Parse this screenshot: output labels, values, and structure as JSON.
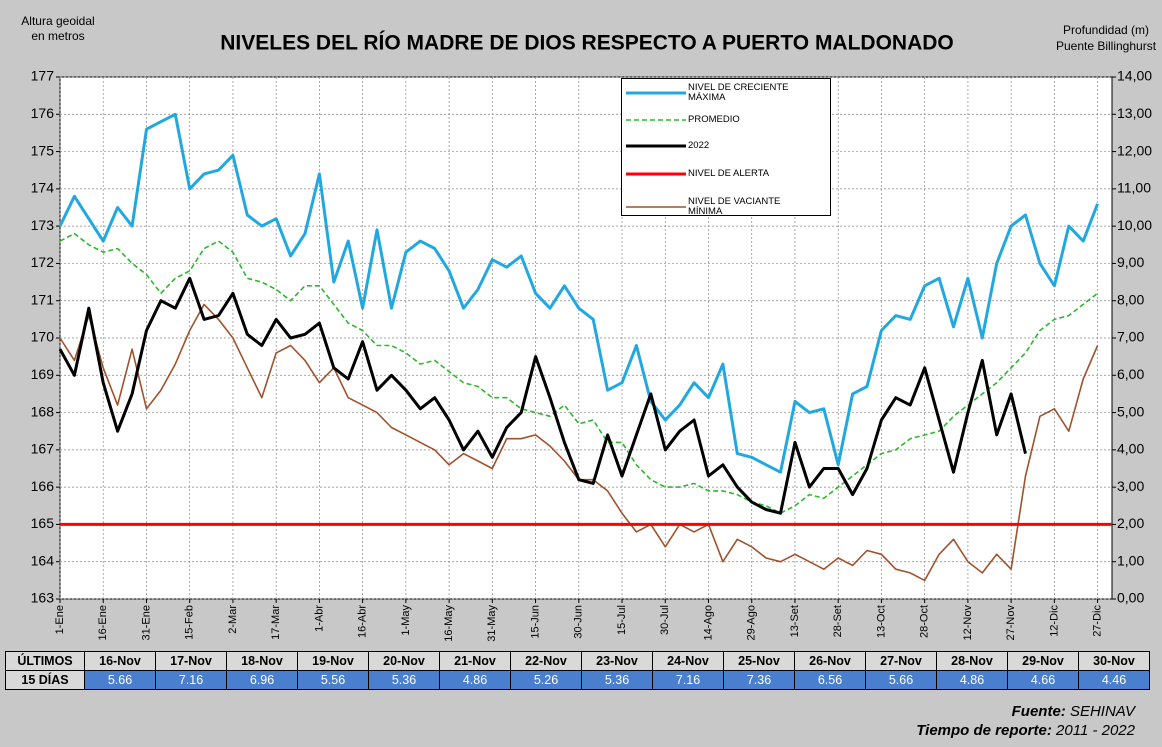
{
  "chart_data": {
    "type": "line",
    "title": "NIVELES DEL RÍO MADRE DE DIOS RESPECTO A PUERTO MALDONADO",
    "y_label": [
      "Altura geoidal",
      "en metros"
    ],
    "y2_label": [
      "Profundidad (m)",
      "Puente Billinghurst"
    ],
    "xlim": [
      0,
      365
    ],
    "xticks": [
      {
        "value": 0,
        "label": "1-Ene"
      },
      {
        "value": 15,
        "label": "16-Ene"
      },
      {
        "value": 30,
        "label": "31-Ene"
      },
      {
        "value": 45,
        "label": "15-Feb"
      },
      {
        "value": 60,
        "label": "2-Mar"
      },
      {
        "value": 75,
        "label": "17-Mar"
      },
      {
        "value": 90,
        "label": "1-Abr"
      },
      {
        "value": 105,
        "label": "16-Abr"
      },
      {
        "value": 120,
        "label": "1-May"
      },
      {
        "value": 135,
        "label": "16-May"
      },
      {
        "value": 150,
        "label": "31-May"
      },
      {
        "value": 165,
        "label": "15-Jun"
      },
      {
        "value": 180,
        "label": "30-Jun"
      },
      {
        "value": 195,
        "label": "15-Jul"
      },
      {
        "value": 210,
        "label": "30-Jul"
      },
      {
        "value": 225,
        "label": "14-Ago"
      },
      {
        "value": 240,
        "label": "29-Ago"
      },
      {
        "value": 255,
        "label": "13-Set"
      },
      {
        "value": 270,
        "label": "28-Set"
      },
      {
        "value": 285,
        "label": "13-Oct"
      },
      {
        "value": 300,
        "label": "28-Oct"
      },
      {
        "value": 315,
        "label": "12-Nov"
      },
      {
        "value": 330,
        "label": "27-Nov"
      },
      {
        "value": 345,
        "label": "12-Dic"
      },
      {
        "value": 360,
        "label": "27-Dic"
      }
    ],
    "ylim": [
      163,
      177
    ],
    "yticks": [
      163,
      164,
      165,
      166,
      167,
      168,
      169,
      170,
      171,
      172,
      173,
      174,
      175,
      176,
      177
    ],
    "y2lim": [
      0,
      14
    ],
    "y2ticks": [
      {
        "value": 0,
        "label": "0,00"
      },
      {
        "value": 1,
        "label": "1,00"
      },
      {
        "value": 2,
        "label": "2,00"
      },
      {
        "value": 3,
        "label": "3,00"
      },
      {
        "value": 4,
        "label": "4,00"
      },
      {
        "value": 5,
        "label": "5,00"
      },
      {
        "value": 6,
        "label": "6,00"
      },
      {
        "value": 7,
        "label": "7,00"
      },
      {
        "value": 8,
        "label": "8,00"
      },
      {
        "value": 9,
        "label": "9,00"
      },
      {
        "value": 10,
        "label": "10,00"
      },
      {
        "value": 11,
        "label": "11,00"
      },
      {
        "value": 12,
        "label": "12,00"
      },
      {
        "value": 13,
        "label": "13,00"
      },
      {
        "value": 14,
        "label": "14,00"
      }
    ],
    "grid": true,
    "x": [
      0,
      5,
      10,
      15,
      20,
      25,
      30,
      35,
      40,
      45,
      50,
      55,
      60,
      65,
      70,
      75,
      80,
      85,
      90,
      95,
      100,
      105,
      110,
      115,
      120,
      125,
      130,
      135,
      140,
      145,
      150,
      155,
      160,
      165,
      170,
      175,
      180,
      185,
      190,
      195,
      200,
      205,
      210,
      215,
      220,
      225,
      230,
      235,
      240,
      245,
      250,
      255,
      260,
      265,
      270,
      275,
      280,
      285,
      290,
      295,
      300,
      305,
      310,
      315,
      320,
      325,
      330,
      335,
      340,
      345,
      350,
      355,
      360
    ],
    "series": [
      {
        "name": "NIVEL DE CRECIENTE MÁXIMA",
        "color": "#22a8e0",
        "dash": false,
        "width": 3,
        "values": [
          173.0,
          173.8,
          173.2,
          172.6,
          173.5,
          173.0,
          175.6,
          175.8,
          176.0,
          174.0,
          174.4,
          174.5,
          174.9,
          173.3,
          173.0,
          173.2,
          172.2,
          172.8,
          174.4,
          171.5,
          172.6,
          170.8,
          172.9,
          170.8,
          172.3,
          172.6,
          172.4,
          171.8,
          170.8,
          171.3,
          172.1,
          171.9,
          172.2,
          171.2,
          170.8,
          171.4,
          170.8,
          170.5,
          168.6,
          168.8,
          169.8,
          168.3,
          167.8,
          168.2,
          168.8,
          168.4,
          169.3,
          166.9,
          166.8,
          166.6,
          166.4,
          168.3,
          168.0,
          168.1,
          166.6,
          168.5,
          168.7,
          170.2,
          170.6,
          170.5,
          171.4,
          171.6,
          170.3,
          171.6,
          170.0,
          172.0,
          173.0,
          173.3,
          172.0,
          171.4,
          173.0,
          172.6,
          173.6
        ]
      },
      {
        "name": "PROMEDIO",
        "color": "#2db82d",
        "dash": true,
        "width": 1.6,
        "values": [
          172.6,
          172.8,
          172.5,
          172.3,
          172.4,
          172.0,
          171.7,
          171.2,
          171.6,
          171.8,
          172.4,
          172.6,
          172.3,
          171.6,
          171.5,
          171.3,
          171.0,
          171.4,
          171.4,
          170.9,
          170.4,
          170.2,
          169.8,
          169.8,
          169.6,
          169.3,
          169.4,
          169.1,
          168.8,
          168.7,
          168.4,
          168.4,
          168.1,
          168.0,
          167.9,
          168.2,
          167.7,
          167.8,
          167.2,
          167.2,
          166.6,
          166.2,
          166.0,
          166.0,
          166.1,
          165.9,
          165.9,
          165.8,
          165.6,
          165.5,
          165.3,
          165.5,
          165.8,
          165.7,
          166.0,
          166.3,
          166.6,
          166.9,
          167.0,
          167.3,
          167.4,
          167.5,
          167.9,
          168.2,
          168.5,
          168.8,
          169.2,
          169.6,
          170.2,
          170.5,
          170.6,
          170.9,
          171.2
        ]
      },
      {
        "name": "2022",
        "color": "#000000",
        "dash": false,
        "width": 3,
        "values": [
          169.7,
          169.0,
          170.8,
          168.8,
          167.5,
          168.5,
          170.2,
          171.0,
          170.8,
          171.6,
          170.5,
          170.6,
          171.2,
          170.1,
          169.8,
          170.5,
          170.0,
          170.1,
          170.4,
          169.2,
          168.9,
          169.9,
          168.6,
          169.0,
          168.6,
          168.1,
          168.4,
          167.8,
          167.0,
          167.5,
          166.8,
          167.6,
          168.0,
          169.5,
          168.4,
          167.2,
          166.2,
          166.1,
          167.4,
          166.3,
          167.4,
          168.5,
          167.0,
          167.5,
          167.8,
          166.3,
          166.6,
          166.0,
          165.6,
          165.4,
          165.3,
          167.2,
          166.0,
          166.5,
          166.5,
          165.8,
          166.5,
          167.8,
          168.4,
          168.2,
          169.2,
          167.8,
          166.4,
          168.0,
          169.4,
          167.4,
          168.5,
          166.9,
          null,
          null,
          null,
          null,
          null
        ]
      },
      {
        "name": "NIVEL DE VACIANTE MÍNIMA",
        "color": "#a0522d",
        "dash": false,
        "width": 1.6,
        "values": [
          170.0,
          169.4,
          170.6,
          169.2,
          168.2,
          169.7,
          168.1,
          168.6,
          169.3,
          170.2,
          170.9,
          170.5,
          170.0,
          169.2,
          168.4,
          169.6,
          169.8,
          169.4,
          168.8,
          169.2,
          168.4,
          168.2,
          168.0,
          167.6,
          167.4,
          167.2,
          167.0,
          166.6,
          166.9,
          166.7,
          166.5,
          167.3,
          167.3,
          167.4,
          167.1,
          166.7,
          166.2,
          166.2,
          165.9,
          165.3,
          164.8,
          165.0,
          164.4,
          165.0,
          164.8,
          165.0,
          164.0,
          164.6,
          164.4,
          164.1,
          164.0,
          164.2,
          164.0,
          163.8,
          164.1,
          163.9,
          164.3,
          164.2,
          163.8,
          163.7,
          163.5,
          164.2,
          164.6,
          164.0,
          163.7,
          164.2,
          163.8,
          166.3,
          167.9,
          168.1,
          167.5,
          168.9,
          169.8
        ]
      }
    ],
    "alert": {
      "name": "NIVEL DE ALERTA",
      "color": "#ff0000",
      "value": 165
    },
    "legend_order": [
      0,
      1,
      2,
      "alert",
      3
    ]
  },
  "table": {
    "header": [
      "ÚLTIMOS",
      "16-Nov",
      "17-Nov",
      "18-Nov",
      "19-Nov",
      "20-Nov",
      "21-Nov",
      "22-Nov",
      "23-Nov",
      "24-Nov",
      "25-Nov",
      "26-Nov",
      "27-Nov",
      "28-Nov",
      "29-Nov",
      "30-Nov"
    ],
    "row": [
      "15 DÍAS",
      "5.66",
      "7.16",
      "6.96",
      "5.56",
      "5.36",
      "4.86",
      "5.26",
      "5.36",
      "7.16",
      "7.36",
      "6.56",
      "5.66",
      "4.86",
      "4.66",
      "4.46"
    ]
  },
  "footer": {
    "source_label": "Fuente:",
    "source": "SEHINAV",
    "period_label": "Tiempo de reporte:",
    "period": "2011 - 2022"
  }
}
